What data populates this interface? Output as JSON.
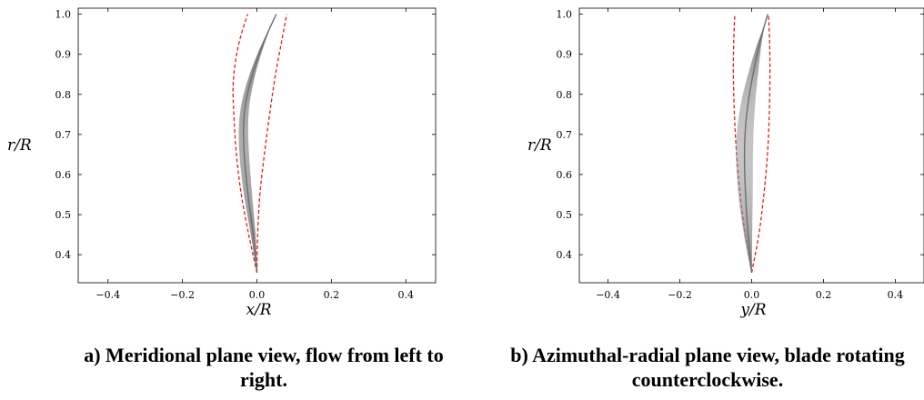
{
  "chart_data": [
    {
      "type": "line",
      "xlabel": "x/R",
      "ylabel": "r/R",
      "xlim": [
        -0.48,
        0.48
      ],
      "ylim": [
        0.33,
        1.015
      ],
      "xticks": [
        -0.4,
        -0.2,
        0.0,
        0.2,
        0.4
      ],
      "xtick_labels": [
        "−0.4",
        "−0.2",
        "0.0",
        "0.2",
        "0.4"
      ],
      "yticks": [
        0.4,
        0.5,
        0.6,
        0.7,
        0.8,
        0.9,
        1.0
      ],
      "ytick_labels": [
        "0.4",
        "0.5",
        "0.6",
        "0.7",
        "0.8",
        "0.9",
        "1.0"
      ],
      "grid": false,
      "series": [
        {
          "style": "dashed",
          "color": "#e41a1c",
          "x": [
            0.0,
            -0.022,
            -0.042,
            -0.055,
            -0.062,
            -0.064,
            -0.058,
            -0.045,
            -0.025
          ],
          "y": [
            0.355,
            0.45,
            0.55,
            0.65,
            0.75,
            0.82,
            0.88,
            0.94,
            1.0
          ]
        },
        {
          "style": "dashed",
          "color": "#e41a1c",
          "x": [
            0.0,
            0.002,
            0.008,
            0.02,
            0.034,
            0.05,
            0.066,
            0.08
          ],
          "y": [
            0.355,
            0.45,
            0.55,
            0.65,
            0.75,
            0.85,
            0.93,
            1.0
          ]
        },
        {
          "style": "bundle",
          "color": "#8c8c8c",
          "x": [
            0.0,
            -0.01,
            -0.024,
            -0.034,
            -0.036,
            -0.03,
            -0.012,
            0.01,
            0.032,
            0.052
          ],
          "y": [
            0.355,
            0.45,
            0.55,
            0.65,
            0.72,
            0.78,
            0.85,
            0.91,
            0.96,
            1.0
          ]
        }
      ],
      "caption": "a) Meridional plane view, flow from left to right."
    },
    {
      "type": "line",
      "xlabel": "y/R",
      "ylabel": "r/R",
      "xlim": [
        -0.48,
        0.48
      ],
      "ylim": [
        0.33,
        1.015
      ],
      "xticks": [
        -0.4,
        -0.2,
        0.0,
        0.2,
        0.4
      ],
      "xtick_labels": [
        "−0.4",
        "−0.2",
        "0.0",
        "0.2",
        "0.4"
      ],
      "yticks": [
        0.4,
        0.5,
        0.6,
        0.7,
        0.8,
        0.9,
        1.0
      ],
      "ytick_labels": [
        "0.4",
        "0.5",
        "0.6",
        "0.7",
        "0.8",
        "0.9",
        "1.0"
      ],
      "grid": false,
      "series": [
        {
          "style": "dashed",
          "color": "#e41a1c",
          "x": [
            0.0,
            -0.018,
            -0.032,
            -0.042,
            -0.048,
            -0.051,
            -0.05,
            -0.047
          ],
          "y": [
            0.355,
            0.45,
            0.55,
            0.65,
            0.75,
            0.85,
            0.93,
            1.0
          ]
        },
        {
          "style": "dashed",
          "color": "#e41a1c",
          "x": [
            0.0,
            0.02,
            0.034,
            0.044,
            0.049,
            0.051,
            0.05,
            0.047
          ],
          "y": [
            0.355,
            0.45,
            0.55,
            0.65,
            0.75,
            0.85,
            0.93,
            1.0
          ]
        },
        {
          "style": "bundle",
          "color": "#8c8c8c",
          "x": [
            0.0,
            -0.01,
            -0.017,
            -0.02,
            -0.017,
            -0.008,
            0.006,
            0.02,
            0.035,
            0.045
          ],
          "y": [
            0.355,
            0.45,
            0.55,
            0.65,
            0.72,
            0.79,
            0.86,
            0.92,
            0.97,
            1.0
          ]
        }
      ],
      "caption": "b) Azimuthal-radial plane view, blade rotating counterclockwise."
    }
  ]
}
